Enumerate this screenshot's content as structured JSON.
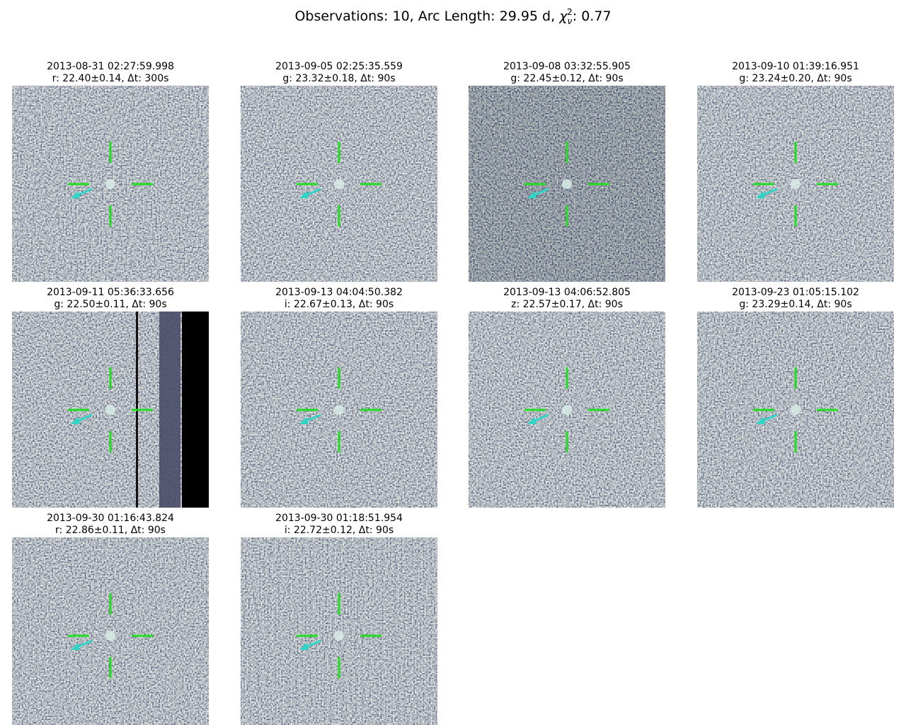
{
  "header": {
    "subtitle": {
      "prefix": "Observations: 10, Arc Length: 29.95 d, ",
      "symbol": "χ",
      "subscript": "ν",
      "superscript": "2",
      "suffix": ": 0.77"
    }
  },
  "panels": [
    {
      "time": "2013-08-31 02:27:59.998",
      "phot": "r: 22.40±0.14, Δt: 300s"
    },
    {
      "time": "2013-09-05 02:25:35.559",
      "phot": "g: 23.32±0.18, Δt: 90s"
    },
    {
      "time": "2013-09-08 03:32:55.905",
      "phot": "g: 22.45±0.12, Δt: 90s"
    },
    {
      "time": "2013-09-10 01:39:16.951",
      "phot": "g: 23.24±0.20, Δt: 90s"
    },
    {
      "time": "2013-09-11 05:36:33.656",
      "phot": "g: 22.50±0.11, Δt: 90s"
    },
    {
      "time": "2013-09-13 04:04:50.382",
      "phot": "i: 22.67±0.13, Δt: 90s"
    },
    {
      "time": "2013-09-13 04:06:52.805",
      "phot": "z: 22.57±0.17, Δt: 90s"
    },
    {
      "time": "2013-09-23 01:05:15.102",
      "phot": "g: 23.29±0.14, Δt: 90s"
    },
    {
      "time": "2013-09-30 01:16:43.824",
      "phot": "r: 22.86±0.11, Δt: 90s"
    },
    {
      "time": "2013-09-30 01:18:51.954",
      "phot": "i: 22.72±0.12, Δt: 90s"
    }
  ]
}
